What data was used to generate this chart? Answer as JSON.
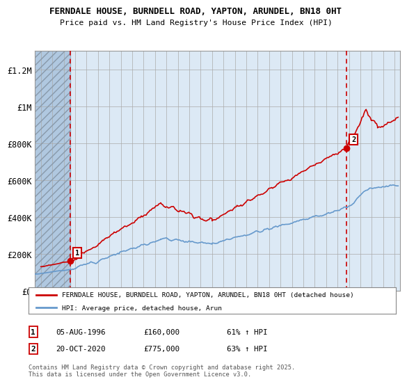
{
  "title": "FERNDALE HOUSE, BURNDELL ROAD, YAPTON, ARUNDEL, BN18 0HT",
  "subtitle": "Price paid vs. HM Land Registry's House Price Index (HPI)",
  "legend_red": "FERNDALE HOUSE, BURNDELL ROAD, YAPTON, ARUNDEL, BN18 0HT (detached house)",
  "legend_blue": "HPI: Average price, detached house, Arun",
  "annotation1_date": "05-AUG-1996",
  "annotation1_price": "£160,000",
  "annotation1_hpi": "61% ↑ HPI",
  "annotation2_date": "20-OCT-2020",
  "annotation2_price": "£775,000",
  "annotation2_hpi": "63% ↑ HPI",
  "footer": "Contains HM Land Registry data © Crown copyright and database right 2025.\nThis data is licensed under the Open Government Licence v3.0.",
  "ylim": [
    0,
    1300000
  ],
  "yticks": [
    0,
    200000,
    400000,
    600000,
    800000,
    1000000,
    1200000
  ],
  "ytick_labels": [
    "£0",
    "£200K",
    "£400K",
    "£600K",
    "£800K",
    "£1M",
    "£1.2M"
  ],
  "xmin": 1993.5,
  "xmax": 2025.5,
  "purchase1_year": 1996.6,
  "purchase1_price": 160000,
  "purchase2_year": 2020.8,
  "purchase2_price": 775000,
  "hatch_xmax": 1996.6,
  "background_color": "#dce9f5",
  "hatch_color": "#b0c8e0",
  "grid_color": "#aaaaaa",
  "red_color": "#cc0000",
  "blue_color": "#6699cc",
  "red_dashed_color": "#cc0000"
}
